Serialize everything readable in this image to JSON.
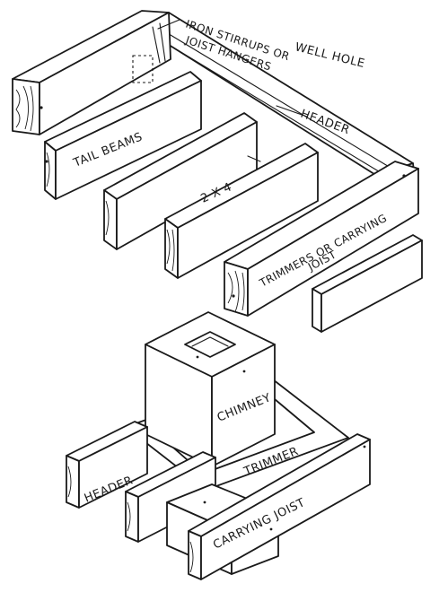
{
  "labels": {
    "iron_stirrups_line1": "IRON STIRRUPS OR",
    "iron_stirrups_line2": "JOIST HANGERS",
    "well_hole": "WELL HOLE",
    "header_top": "HEADER",
    "tail_beams": "TAIL BEAMS",
    "size": "2 X 4",
    "trimmers_line1": "TRIMMERS OR CARRYING",
    "trimmers_line2": "JOIST",
    "chimney": "CHIMNEY",
    "trimmer": "TRIMMER",
    "header_bottom": "HEADER",
    "carrying_joist": "CARRYING JOIST"
  }
}
